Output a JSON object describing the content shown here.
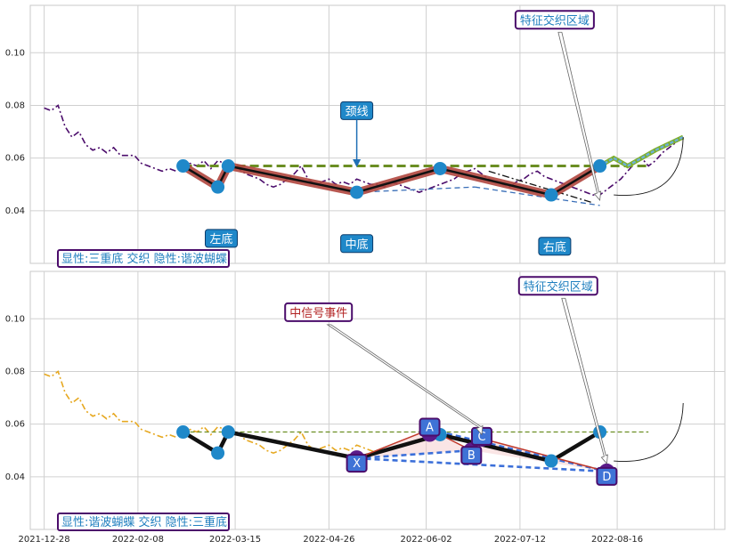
{
  "chart_data": [
    {
      "type": "line",
      "panel": "top",
      "title": "",
      "ylim": [
        0.02,
        0.118
      ],
      "y_ticks": [
        "0.04",
        "0.06",
        "0.08",
        "0.10"
      ],
      "grid": true,
      "price_series": {
        "color": "#4b0c6b",
        "points": [
          [
            0,
            0.079
          ],
          [
            2,
            0.078
          ],
          [
            4,
            0.08
          ],
          [
            6,
            0.072
          ],
          [
            8,
            0.068
          ],
          [
            10,
            0.07
          ],
          [
            12,
            0.065
          ],
          [
            14,
            0.063
          ],
          [
            16,
            0.064
          ],
          [
            18,
            0.062
          ],
          [
            20,
            0.064
          ],
          [
            22,
            0.061
          ],
          [
            24,
            0.061
          ],
          [
            26,
            0.061
          ],
          [
            28,
            0.058
          ],
          [
            30,
            0.057
          ],
          [
            32,
            0.056
          ],
          [
            34,
            0.055
          ],
          [
            36,
            0.056
          ],
          [
            38,
            0.055
          ],
          [
            40,
            0.057
          ],
          [
            42,
            0.058
          ],
          [
            44,
            0.057
          ],
          [
            46,
            0.059
          ],
          [
            48,
            0.056
          ],
          [
            50,
            0.059
          ],
          [
            52,
            0.058
          ],
          [
            54,
            0.058
          ],
          [
            56,
            0.056
          ],
          [
            58,
            0.054
          ],
          [
            60,
            0.053
          ],
          [
            62,
            0.052
          ],
          [
            64,
            0.05
          ],
          [
            66,
            0.049
          ],
          [
            68,
            0.05
          ],
          [
            70,
            0.052
          ],
          [
            72,
            0.054
          ],
          [
            74,
            0.057
          ],
          [
            76,
            0.052
          ],
          [
            78,
            0.05
          ],
          [
            80,
            0.051
          ],
          [
            82,
            0.052
          ],
          [
            84,
            0.05
          ],
          [
            86,
            0.051
          ],
          [
            88,
            0.05
          ],
          [
            90,
            0.052
          ],
          [
            92,
            0.051
          ],
          [
            94,
            0.05
          ],
          [
            96,
            0.05
          ],
          [
            98,
            0.049
          ],
          [
            100,
            0.051
          ],
          [
            102,
            0.05
          ],
          [
            104,
            0.049
          ],
          [
            106,
            0.048
          ],
          [
            108,
            0.047
          ],
          [
            110,
            0.048
          ],
          [
            112,
            0.049
          ],
          [
            114,
            0.05
          ],
          [
            116,
            0.051
          ],
          [
            118,
            0.052
          ],
          [
            120,
            0.054
          ],
          [
            122,
            0.055
          ],
          [
            124,
            0.056
          ],
          [
            126,
            0.054
          ],
          [
            128,
            0.052
          ],
          [
            130,
            0.051
          ],
          [
            132,
            0.05
          ],
          [
            134,
            0.049
          ],
          [
            136,
            0.051
          ],
          [
            138,
            0.052
          ],
          [
            140,
            0.054
          ],
          [
            142,
            0.055
          ],
          [
            144,
            0.053
          ],
          [
            146,
            0.052
          ],
          [
            148,
            0.051
          ],
          [
            150,
            0.05
          ],
          [
            152,
            0.049
          ],
          [
            154,
            0.048
          ],
          [
            156,
            0.047
          ],
          [
            158,
            0.046
          ],
          [
            160,
            0.046
          ],
          [
            162,
            0.048
          ],
          [
            164,
            0.05
          ],
          [
            166,
            0.052
          ],
          [
            168,
            0.055
          ],
          [
            170,
            0.058
          ],
          [
            172,
            0.06
          ],
          [
            174,
            0.057
          ],
          [
            176,
            0.059
          ],
          [
            178,
            0.062
          ],
          [
            180,
            0.064
          ],
          [
            182,
            0.066
          ],
          [
            184,
            0.068
          ]
        ]
      },
      "neckline": {
        "x": [
          40,
          174
        ],
        "y": 0.057,
        "color": "#6b8e23"
      },
      "pattern_path": {
        "points": [
          [
            40,
            0.057
          ],
          [
            50,
            0.049
          ],
          [
            53,
            0.057
          ],
          [
            90,
            0.047
          ],
          [
            114,
            0.056
          ],
          [
            146,
            0.046
          ],
          [
            160,
            0.057
          ]
        ],
        "color": "#b0463e"
      },
      "pivots": [
        [
          40,
          0.057
        ],
        [
          50,
          0.049
        ],
        [
          53,
          0.057
        ],
        [
          90,
          0.047
        ],
        [
          114,
          0.056
        ],
        [
          146,
          0.046
        ],
        [
          160,
          0.057
        ]
      ],
      "projection": {
        "points": [
          [
            160,
            0.057
          ],
          [
            164,
            0.06
          ],
          [
            168,
            0.057
          ],
          [
            176,
            0.063
          ],
          [
            184,
            0.068
          ]
        ],
        "color": "#6db0d8"
      },
      "hidden_lines": [
        {
          "points": [
            [
              90,
              0.047
            ],
            [
              124,
              0.049
            ]
          ],
          "color": "#3a6fb8",
          "style": "dashed"
        },
        {
          "points": [
            [
              124,
              0.049
            ],
            [
              160,
              0.042
            ]
          ],
          "color": "#3a6fb8",
          "style": "dashed"
        },
        {
          "points": [
            [
              128,
              0.055
            ],
            [
              158,
              0.043
            ]
          ],
          "color": "#111111",
          "style": "dashdot"
        }
      ],
      "annotations": [
        {
          "text": "左底",
          "x": 51,
          "y": 0.0295,
          "color": "#ffffff",
          "bg": "#1f88c9"
        },
        {
          "text": "颈线",
          "x": 90,
          "y": 0.078,
          "color": "#ffffff",
          "bg": "#1f88c9"
        },
        {
          "text": "中底",
          "x": 90,
          "y": 0.0275,
          "color": "#ffffff",
          "bg": "#1f88c9"
        },
        {
          "text": "右底",
          "x": 147,
          "y": 0.0265,
          "color": "#ffffff",
          "bg": "#1f88c9"
        },
        {
          "text": "特征交织区域",
          "x": 147,
          "y": 0.1125,
          "color": "#1f7fbf",
          "bg": "#ffffff"
        }
      ],
      "caption": "显性:三重底 交织 隐性:谐波蝴蝶"
    },
    {
      "type": "line",
      "panel": "bottom",
      "title": "",
      "ylim": [
        0.02,
        0.118
      ],
      "y_ticks": [
        "0.04",
        "0.06",
        "0.08",
        "0.10"
      ],
      "x_ticks": [
        "2021-12-28",
        "2022-02-08",
        "2022-03-15",
        "2022-04-26",
        "2022-06-02",
        "2022-07-12",
        "2022-08-16"
      ],
      "grid": true,
      "price_series": {
        "color": "#e6a820",
        "points": [
          [
            0,
            0.079
          ],
          [
            2,
            0.078
          ],
          [
            4,
            0.08
          ],
          [
            6,
            0.072
          ],
          [
            8,
            0.068
          ],
          [
            10,
            0.07
          ],
          [
            12,
            0.065
          ],
          [
            14,
            0.063
          ],
          [
            16,
            0.064
          ],
          [
            18,
            0.062
          ],
          [
            20,
            0.064
          ],
          [
            22,
            0.061
          ],
          [
            24,
            0.061
          ],
          [
            26,
            0.061
          ],
          [
            28,
            0.058
          ],
          [
            30,
            0.057
          ],
          [
            32,
            0.056
          ],
          [
            34,
            0.055
          ],
          [
            36,
            0.056
          ],
          [
            38,
            0.055
          ],
          [
            40,
            0.057
          ],
          [
            42,
            0.058
          ],
          [
            44,
            0.057
          ],
          [
            46,
            0.059
          ],
          [
            48,
            0.056
          ],
          [
            50,
            0.059
          ],
          [
            52,
            0.058
          ],
          [
            54,
            0.058
          ],
          [
            56,
            0.056
          ],
          [
            58,
            0.054
          ],
          [
            60,
            0.053
          ],
          [
            62,
            0.052
          ],
          [
            64,
            0.05
          ],
          [
            66,
            0.049
          ],
          [
            68,
            0.05
          ],
          [
            70,
            0.052
          ],
          [
            72,
            0.054
          ],
          [
            74,
            0.057
          ],
          [
            76,
            0.052
          ],
          [
            78,
            0.05
          ],
          [
            80,
            0.051
          ],
          [
            82,
            0.052
          ],
          [
            84,
            0.05
          ],
          [
            86,
            0.051
          ],
          [
            88,
            0.05
          ],
          [
            90,
            0.052
          ],
          [
            92,
            0.051
          ],
          [
            94,
            0.05
          ],
          [
            96,
            0.049
          ]
        ]
      },
      "neckline": {
        "x": [
          40,
          174
        ],
        "y": 0.057,
        "color": "#6b8e23"
      },
      "pattern_path": {
        "points": [
          [
            40,
            0.057
          ],
          [
            50,
            0.049
          ],
          [
            53,
            0.057
          ],
          [
            90,
            0.047
          ],
          [
            114,
            0.056
          ],
          [
            146,
            0.046
          ],
          [
            160,
            0.057
          ]
        ],
        "color": "#111111"
      },
      "pivots": [
        [
          40,
          0.057
        ],
        [
          50,
          0.049
        ],
        [
          53,
          0.057
        ],
        [
          90,
          0.047
        ],
        [
          114,
          0.056
        ],
        [
          146,
          0.046
        ],
        [
          160,
          0.057
        ]
      ],
      "harmonic_path": {
        "points": [
          [
            90,
            0.047
          ],
          [
            111,
            0.058
          ],
          [
            123,
            0.05
          ],
          [
            126,
            0.0545
          ],
          [
            162,
            0.042
          ]
        ],
        "color": "#c0392b"
      },
      "hidden_lines": [
        {
          "points": [
            [
              90,
              0.047
            ],
            [
              123,
              0.05
            ]
          ],
          "color": "#3b6fd9",
          "style": "dashed"
        },
        {
          "points": [
            [
              90,
              0.047
            ],
            [
              162,
              0.042
            ]
          ],
          "color": "#3b6fd9",
          "style": "dashed"
        },
        {
          "points": [
            [
              111,
              0.058
            ],
            [
              162,
              0.042
            ]
          ],
          "color": "#3b6fd9",
          "style": "dashed"
        }
      ],
      "points_xabcd": [
        {
          "text": "X",
          "x": 90,
          "y": 0.047
        },
        {
          "text": "A",
          "x": 111,
          "y": 0.058
        },
        {
          "text": "B",
          "x": 123,
          "y": 0.05
        },
        {
          "text": "C",
          "x": 126,
          "y": 0.0545
        },
        {
          "text": "D",
          "x": 162,
          "y": 0.042
        }
      ],
      "annotations": [
        {
          "text": "中信号事件",
          "x": 79,
          "y": 0.1025,
          "color": "#b22222",
          "bg": "#ffffff"
        },
        {
          "text": "特征交织区域",
          "x": 148,
          "y": 0.1125,
          "color": "#1f7fbf",
          "bg": "#ffffff"
        }
      ],
      "caption": "显性:谐波蝴蝶 交织 隐性:三重底"
    }
  ]
}
